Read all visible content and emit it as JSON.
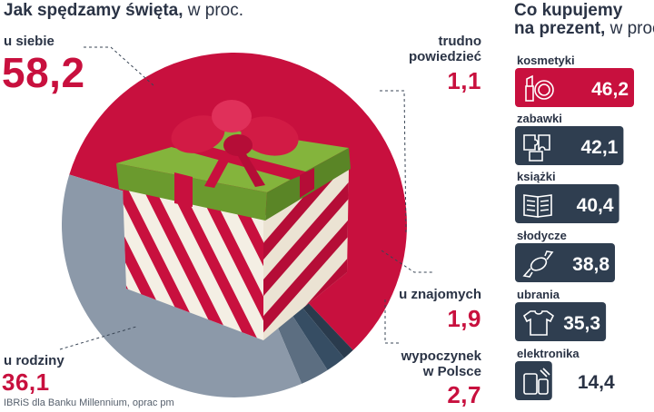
{
  "left_title": {
    "bold": "Jak spędzamy święta,",
    "light": "w proc."
  },
  "right_title": {
    "line1": "Co kupujemy",
    "line2_bold": "na prezent,",
    "line2_light": "w proc."
  },
  "source": "IBRiS dla Banku Millennium, oprac pm",
  "colors": {
    "red": "#c8103e",
    "gray": "#8c99a9",
    "dark": "#364d63",
    "darkest": "#2a3b4d",
    "navy": "#2f3e50",
    "box_green": "#6b9a2e"
  },
  "chart_data": [
    {
      "type": "pie",
      "title": "Jak spędzamy święta, w proc.",
      "slices": [
        {
          "label": "u siebie",
          "value": 58.2,
          "display": "58,2",
          "color": "#c8103e"
        },
        {
          "label": "trudno powiedzieć",
          "label_lines": [
            "trudno",
            "powiedzieć"
          ],
          "value": 1.1,
          "display": "1,1",
          "color": "#2a3b4d"
        },
        {
          "label": "u znajomych",
          "value": 1.9,
          "display": "1,9",
          "color": "#364d63"
        },
        {
          "label": "wypoczynek w Polsce",
          "label_lines": [
            "wypoczynek",
            "w Polsce"
          ],
          "value": 2.7,
          "display": "2,7",
          "color": "#5c6e81"
        },
        {
          "label": "u rodziny",
          "value": 36.1,
          "display": "36,1",
          "color": "#8c99a9"
        }
      ]
    },
    {
      "type": "bar",
      "orientation": "horizontal",
      "title": "Co kupujemy na prezent, w proc.",
      "categories": [
        "kosmetyki",
        "zabawki",
        "książki",
        "słodycze",
        "ubrania",
        "elektronika"
      ],
      "values": [
        46.2,
        42.1,
        40.4,
        38.8,
        35.3,
        14.4
      ],
      "display": [
        "46,2",
        "42,1",
        "40,4",
        "38,8",
        "35,3",
        "14,4"
      ],
      "icons": [
        "lipstick-mirror-icon",
        "puzzle-icon",
        "book-icon",
        "candy-icon",
        "tshirt-icon",
        "phone-tablet-icon"
      ],
      "colors": [
        "#c8103e",
        "#2f3e50",
        "#2f3e50",
        "#2f3e50",
        "#2f3e50",
        "#2f3e50"
      ]
    }
  ]
}
